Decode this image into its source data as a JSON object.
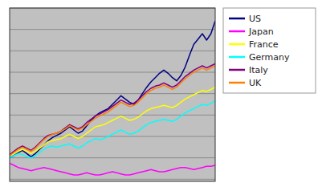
{
  "chart_data": {
    "type": "line",
    "x": [
      0,
      1,
      2,
      3,
      4,
      5,
      6,
      7,
      8,
      9,
      10,
      11,
      12,
      13,
      14,
      15,
      16,
      17,
      18,
      19,
      20,
      21,
      22,
      23,
      24,
      25,
      26,
      27,
      28,
      29,
      30,
      31,
      32,
      33,
      34,
      35,
      36,
      37,
      38,
      39,
      40,
      41,
      42,
      43,
      44,
      45,
      46,
      47,
      48
    ],
    "xlim": [
      0,
      48
    ],
    "xticks": [],
    "ylim": [
      97.8,
      114.0
    ],
    "yticks": [
      98,
      100,
      102,
      104,
      106,
      108,
      110,
      112,
      114
    ],
    "grid": true,
    "tick_labels": false,
    "legend": "right",
    "series": [
      {
        "name": "US",
        "color": "#000080",
        "values": [
          100.0,
          100.2,
          100.5,
          100.7,
          100.4,
          100.1,
          100.4,
          100.8,
          101.2,
          101.6,
          101.9,
          102.1,
          102.3,
          102.6,
          102.9,
          102.6,
          102.3,
          102.5,
          103.0,
          103.5,
          103.9,
          104.2,
          104.4,
          104.6,
          105.0,
          105.4,
          105.8,
          105.5,
          105.2,
          105.0,
          105.4,
          106.0,
          106.6,
          107.1,
          107.5,
          107.9,
          108.2,
          107.9,
          107.5,
          107.2,
          107.7,
          108.5,
          109.6,
          110.6,
          111.1,
          111.6,
          111.0,
          111.6,
          112.8
        ]
      },
      {
        "name": "Japan",
        "color": "#ff00ff",
        "values": [
          99.5,
          99.3,
          99.1,
          99.0,
          98.9,
          98.8,
          98.9,
          99.0,
          99.1,
          99.0,
          98.9,
          98.8,
          98.7,
          98.6,
          98.5,
          98.4,
          98.4,
          98.5,
          98.6,
          98.5,
          98.4,
          98.4,
          98.5,
          98.6,
          98.7,
          98.6,
          98.5,
          98.4,
          98.4,
          98.5,
          98.6,
          98.7,
          98.8,
          98.9,
          98.8,
          98.7,
          98.7,
          98.8,
          98.9,
          99.0,
          99.1,
          99.1,
          99.0,
          98.9,
          99.0,
          99.1,
          99.2,
          99.2,
          99.3
        ]
      },
      {
        "name": "France",
        "color": "#ffff00",
        "values": [
          100.2,
          100.4,
          100.6,
          100.8,
          100.6,
          100.4,
          100.6,
          100.9,
          101.2,
          101.5,
          101.6,
          101.7,
          101.8,
          102.0,
          102.2,
          102.0,
          101.8,
          102.0,
          102.3,
          102.6,
          102.9,
          103.0,
          103.1,
          103.3,
          103.5,
          103.7,
          103.9,
          103.7,
          103.5,
          103.6,
          103.8,
          104.1,
          104.4,
          104.6,
          104.7,
          104.8,
          104.9,
          104.8,
          104.7,
          104.9,
          105.2,
          105.5,
          105.7,
          105.9,
          106.1,
          106.3,
          106.2,
          106.4,
          106.6
        ]
      },
      {
        "name": "Germany",
        "color": "#00ffff",
        "values": [
          100.0,
          100.2,
          100.4,
          100.3,
          100.1,
          100.0,
          100.2,
          100.5,
          100.8,
          101.0,
          101.1,
          101.0,
          101.1,
          101.2,
          101.3,
          101.1,
          100.9,
          101.1,
          101.4,
          101.6,
          101.8,
          101.7,
          101.8,
          102.0,
          102.2,
          102.4,
          102.6,
          102.4,
          102.2,
          102.3,
          102.5,
          102.8,
          103.1,
          103.3,
          103.4,
          103.5,
          103.6,
          103.5,
          103.4,
          103.6,
          103.9,
          104.2,
          104.4,
          104.6,
          104.8,
          105.0,
          104.9,
          105.1,
          105.3
        ]
      },
      {
        "name": "Italy",
        "color": "#800080",
        "values": [
          100.3,
          100.6,
          100.9,
          101.1,
          100.9,
          100.7,
          101.0,
          101.4,
          101.8,
          102.1,
          102.2,
          102.3,
          102.5,
          102.8,
          103.1,
          102.9,
          102.7,
          102.9,
          103.3,
          103.6,
          103.9,
          104.1,
          104.3,
          104.5,
          104.8,
          105.1,
          105.4,
          105.2,
          105.0,
          105.1,
          105.4,
          105.8,
          106.2,
          106.5,
          106.7,
          106.8,
          107.0,
          106.8,
          106.6,
          106.8,
          107.2,
          107.6,
          107.9,
          108.2,
          108.4,
          108.6,
          108.4,
          108.6,
          108.8
        ]
      },
      {
        "name": "UK",
        "color": "#ff8000",
        "values": [
          100.2,
          100.5,
          100.8,
          101.0,
          100.8,
          100.6,
          100.9,
          101.3,
          101.7,
          102.0,
          102.2,
          102.3,
          102.5,
          102.7,
          103.0,
          102.8,
          102.6,
          102.8,
          103.1,
          103.4,
          103.7,
          103.9,
          104.1,
          104.3,
          104.6,
          104.9,
          105.2,
          105.0,
          104.8,
          104.9,
          105.2,
          105.6,
          106.0,
          106.3,
          106.5,
          106.6,
          106.8,
          106.6,
          106.4,
          106.6,
          107.0,
          107.4,
          107.7,
          108.0,
          108.2,
          108.4,
          108.2,
          108.4,
          108.6
        ]
      }
    ]
  }
}
